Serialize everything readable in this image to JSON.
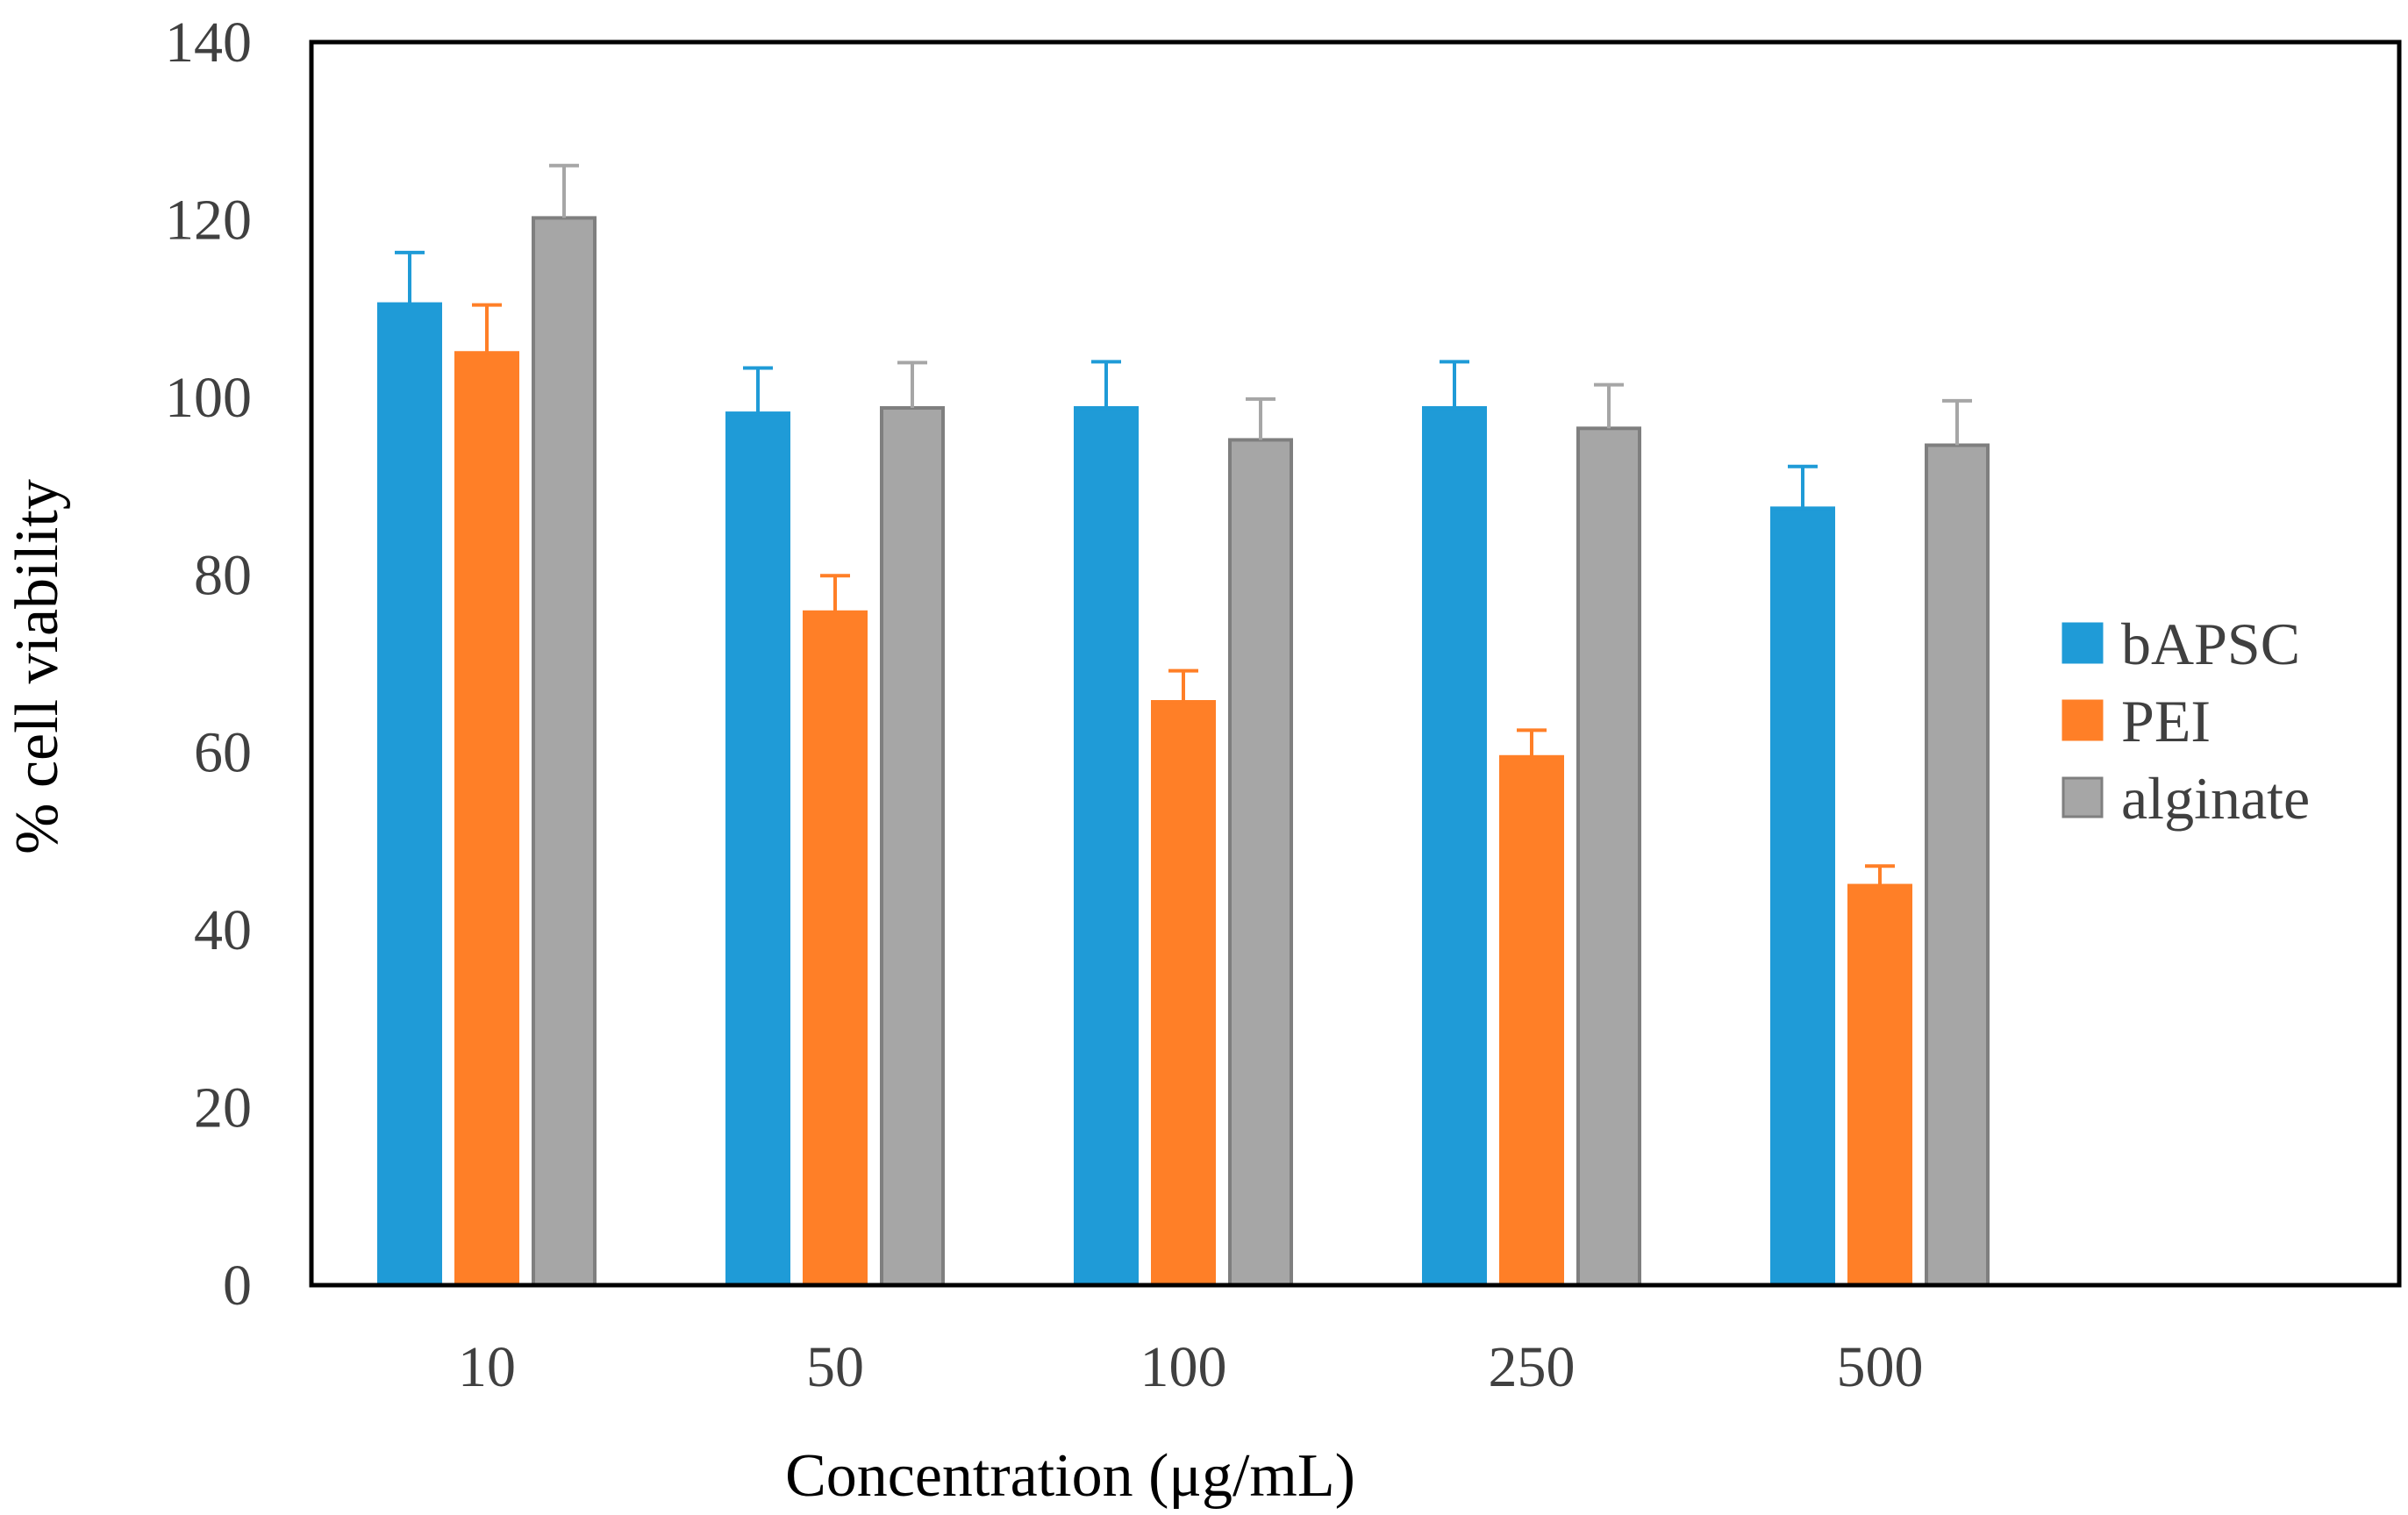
{
  "chart_data": {
    "type": "bar",
    "title": "",
    "xlabel": "Concentration (μg/mL)",
    "ylabel": "% cell viability",
    "ylim": [
      0,
      140
    ],
    "yticks": [
      0,
      20,
      40,
      60,
      80,
      100,
      120,
      140
    ],
    "ytick_labels": [
      "0",
      "20",
      "40",
      "60",
      "80",
      "100",
      "120",
      "140"
    ],
    "categories": [
      "10",
      "50",
      "100",
      "250",
      "500"
    ],
    "grid": false,
    "legend_position": "right",
    "series": [
      {
        "name": "bAPSC",
        "color": "#1f9bd7",
        "values": [
          110.5,
          98.2,
          98.8,
          98.8,
          87.5
        ],
        "errors": [
          5.8,
          5.1,
          5.2,
          5.2,
          4.7
        ]
      },
      {
        "name": "PEI",
        "color": "#ff7f27",
        "values": [
          105.0,
          75.8,
          65.7,
          59.5,
          45.0
        ],
        "errors": [
          5.4,
          4.1,
          3.5,
          3.0,
          2.2
        ]
      },
      {
        "name": "alginate",
        "color": "#a6a6a6",
        "values": [
          120.2,
          98.8,
          95.2,
          96.5,
          94.6
        ],
        "errors": [
          5.9,
          5.1,
          4.6,
          4.9,
          5.0
        ]
      }
    ]
  }
}
